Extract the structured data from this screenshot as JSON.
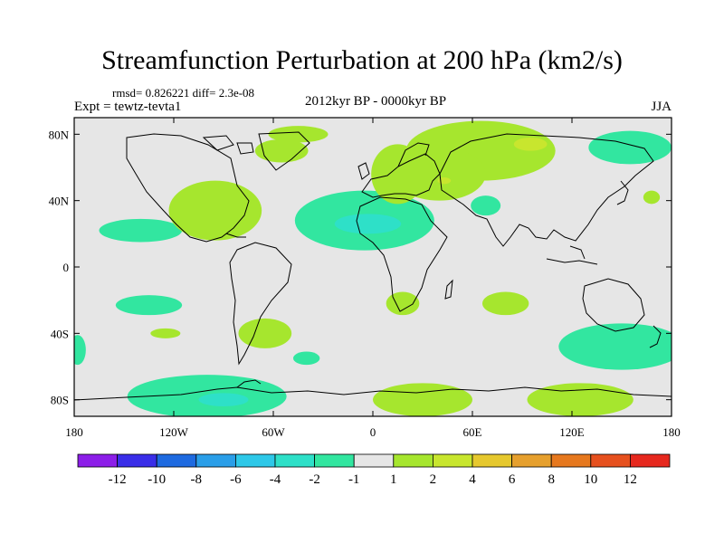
{
  "chart_data": {
    "type": "map-contour",
    "title": "Streamfunction Perturbation at 200 hPa (km2/s)",
    "rmsd_text": "rmsd= 0.826221 diff= 2.3e-08",
    "left_subtitle": "Expt = tewtz-tevta1",
    "center_subtitle": "2012kyr BP - 0000kyr BP",
    "right_subtitle": "JJA",
    "lon_range": [
      -180,
      180
    ],
    "lat_range": [
      -90,
      90
    ],
    "x_ticks": [
      {
        "lon": -180,
        "label": "180"
      },
      {
        "lon": -120,
        "label": "120W"
      },
      {
        "lon": -60,
        "label": "60W"
      },
      {
        "lon": 0,
        "label": "0"
      },
      {
        "lon": 60,
        "label": "60E"
      },
      {
        "lon": 120,
        "label": "120E"
      },
      {
        "lon": 180,
        "label": "180"
      }
    ],
    "y_ticks": [
      {
        "lat": 80,
        "label": "80N"
      },
      {
        "lat": 40,
        "label": "40N"
      },
      {
        "lat": 0,
        "label": "0"
      },
      {
        "lat": -40,
        "label": "40S"
      },
      {
        "lat": -80,
        "label": "80S"
      }
    ],
    "colorbar": {
      "colors": [
        "#8c1ee8",
        "#3a2ee8",
        "#1e6ae0",
        "#2a9ee8",
        "#2ec8e8",
        "#2ee0c8",
        "#32e6a0",
        "#e6e6e6",
        "#a6e62e",
        "#c8e62e",
        "#e6c82e",
        "#e6a02e",
        "#e6781e",
        "#e6501e",
        "#e6281e"
      ],
      "labels": [
        "-12",
        "-10",
        "-8",
        "-6",
        "-4",
        "-2",
        "-1",
        "1",
        "2",
        "4",
        "6",
        "8",
        "10",
        "12"
      ]
    },
    "contour_regions": [
      {
        "name": "pacific-subtropical",
        "level": -1,
        "lon": -140,
        "lat": 22,
        "rx": 25,
        "ry": 7
      },
      {
        "name": "north-america-east",
        "level": 1,
        "lon": -95,
        "lat": 34,
        "rx": 28,
        "ry": 18
      },
      {
        "name": "atlantic-central",
        "level": -1,
        "lon": -5,
        "lat": 28,
        "rx": 42,
        "ry": 18
      },
      {
        "name": "atlantic-core",
        "level": -2,
        "lon": -3,
        "lat": 26,
        "rx": 20,
        "ry": 6
      },
      {
        "name": "greenland",
        "level": 1,
        "lon": -55,
        "lat": 70,
        "rx": 16,
        "ry": 7
      },
      {
        "name": "north-atlantic-high",
        "level": 1,
        "lon": -45,
        "lat": 80,
        "rx": 18,
        "ry": 5
      },
      {
        "name": "europe",
        "level": 1,
        "lon": 15,
        "lat": 56,
        "rx": 16,
        "ry": 18
      },
      {
        "name": "siberia",
        "level": 1,
        "lon": 65,
        "lat": 70,
        "rx": 45,
        "ry": 18
      },
      {
        "name": "siberia-core",
        "level": 2,
        "lon": 95,
        "lat": 74,
        "rx": 10,
        "ry": 4
      },
      {
        "name": "central-asia",
        "level": 1,
        "lon": 40,
        "lat": 56,
        "rx": 28,
        "ry": 16
      },
      {
        "name": "middle-east-core",
        "level": 2,
        "lon": 43,
        "lat": 52,
        "rx": 4,
        "ry": 2
      },
      {
        "name": "north-pacific",
        "level": -1,
        "lon": 155,
        "lat": 72,
        "rx": 25,
        "ry": 10
      },
      {
        "name": "arabian-sea",
        "level": -1,
        "lon": 68,
        "lat": 37,
        "rx": 9,
        "ry": 6
      },
      {
        "name": "west-pacific",
        "level": 1,
        "lon": 168,
        "lat": 42,
        "rx": 5,
        "ry": 4
      },
      {
        "name": "south-atlantic",
        "level": 1,
        "lon": 18,
        "lat": -22,
        "rx": 10,
        "ry": 7
      },
      {
        "name": "indian-ocean",
        "level": 1,
        "lon": 80,
        "lat": -22,
        "rx": 14,
        "ry": 7
      },
      {
        "name": "south-pacific-east",
        "level": -1,
        "lon": -135,
        "lat": -23,
        "rx": 20,
        "ry": 6
      },
      {
        "name": "south-pacific-small",
        "level": 1,
        "lon": -125,
        "lat": -40,
        "rx": 9,
        "ry": 3
      },
      {
        "name": "south-america",
        "level": 1,
        "lon": -65,
        "lat": -40,
        "rx": 16,
        "ry": 9
      },
      {
        "name": "south-africa",
        "level": -1,
        "lon": -40,
        "lat": -55,
        "rx": 8,
        "ry": 4
      },
      {
        "name": "australia",
        "level": -1,
        "lon": 150,
        "lat": -48,
        "rx": 38,
        "ry": 14
      },
      {
        "name": "far-west-south",
        "level": -1,
        "lon": -178,
        "lat": -50,
        "rx": 5,
        "ry": 9
      },
      {
        "name": "antarctic-pacific",
        "level": -1,
        "lon": -100,
        "lat": -78,
        "rx": 48,
        "ry": 13
      },
      {
        "name": "antarctic-core",
        "level": -2,
        "lon": -90,
        "lat": -80,
        "rx": 15,
        "ry": 4
      },
      {
        "name": "antarctic-atlantic",
        "level": 1,
        "lon": 30,
        "lat": -80,
        "rx": 30,
        "ry": 10
      },
      {
        "name": "antarctic-indian",
        "level": 1,
        "lon": 125,
        "lat": -80,
        "rx": 32,
        "ry": 10
      }
    ]
  }
}
